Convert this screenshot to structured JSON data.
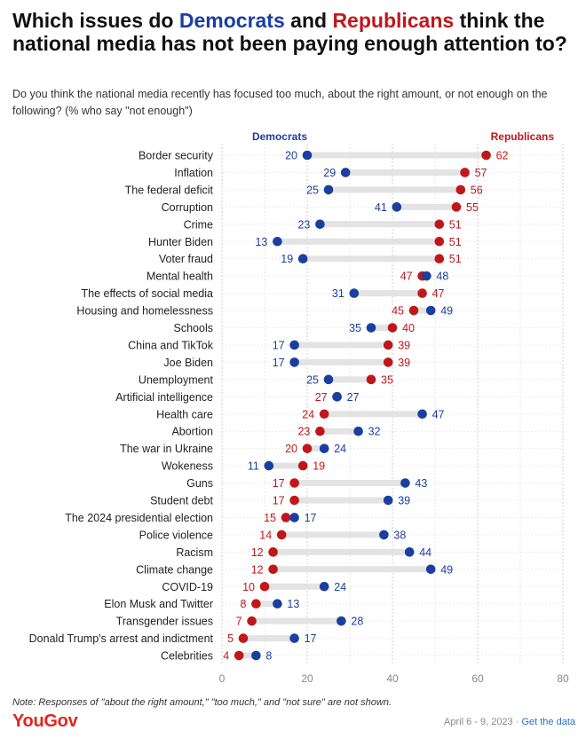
{
  "title": {
    "part1": "Which issues do ",
    "dem": "Democrats",
    "part2": " and ",
    "rep": "Republicans",
    "part3": " think the national media has not been paying enough attention to?"
  },
  "subtitle": "Do you think the national media recently has focused too much, about the right amount, or not enough on the following? (% who say \"not enough\")",
  "footnote": "Note: Responses of \"about the right amount,\" \"too much,\" and \"not sure\" are not shown.",
  "logo": "YouGov",
  "date_text": "April 6 - 9, 2023 · ",
  "link_text": "Get the data",
  "colors": {
    "democrats": "#1a3fa0",
    "republicans": "#c0171b",
    "bar": "#e3e3e3",
    "grid": "#d0d0d0"
  },
  "chart_data": {
    "type": "dot",
    "series": [
      {
        "name": "Democrats",
        "values": [
          20,
          29,
          25,
          41,
          23,
          13,
          19,
          48,
          31,
          49,
          35,
          17,
          17,
          25,
          27,
          47,
          32,
          24,
          11,
          43,
          39,
          17,
          38,
          44,
          49,
          24,
          13,
          28,
          17,
          8
        ]
      },
      {
        "name": "Republicans",
        "values": [
          62,
          57,
          56,
          55,
          51,
          51,
          51,
          47,
          47,
          45,
          40,
          39,
          39,
          35,
          27,
          24,
          23,
          20,
          19,
          17,
          17,
          15,
          14,
          12,
          12,
          10,
          8,
          7,
          5,
          4
        ]
      }
    ],
    "categories": [
      "Border security",
      "Inflation",
      "The federal deficit",
      "Corruption",
      "Crime",
      "Hunter Biden",
      "Voter fraud",
      "Mental health",
      "The effects of social media",
      "Housing and homelessness",
      "Schools",
      "China and TikTok",
      "Joe Biden",
      "Unemployment",
      "Artificial intelligence",
      "Health care",
      "Abortion",
      "The war in Ukraine",
      "Wokeness",
      "Guns",
      "Student debt",
      "The 2024 presidential election",
      "Police violence",
      "Racism",
      "Climate change",
      "COVID-19",
      "Elon Musk and Twitter",
      "Transgender issues",
      "Donald Trump's arrest and indictment",
      "Celebrities"
    ],
    "xlim": [
      0,
      80
    ],
    "xticks": [
      "0",
      "20",
      "40",
      "60",
      "80"
    ],
    "grid": true
  }
}
